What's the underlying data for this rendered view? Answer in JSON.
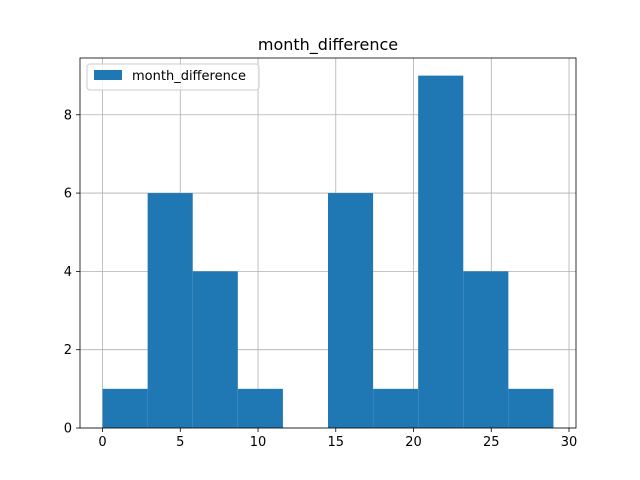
{
  "chart_data": {
    "type": "bar",
    "title": "month_difference",
    "xlabel": "",
    "ylabel": "",
    "series": [
      {
        "name": "month_difference",
        "color": "#1f77b4",
        "bins": [
          {
            "x0": 0.0,
            "x1": 2.9,
            "count": 1
          },
          {
            "x0": 2.9,
            "x1": 5.8,
            "count": 6
          },
          {
            "x0": 5.8,
            "x1": 8.7,
            "count": 4
          },
          {
            "x0": 8.7,
            "x1": 11.6,
            "count": 1
          },
          {
            "x0": 11.6,
            "x1": 14.5,
            "count": 0
          },
          {
            "x0": 14.5,
            "x1": 17.4,
            "count": 6
          },
          {
            "x0": 17.4,
            "x1": 20.3,
            "count": 1
          },
          {
            "x0": 20.3,
            "x1": 23.2,
            "count": 9
          },
          {
            "x0": 23.2,
            "x1": 26.1,
            "count": 4
          },
          {
            "x0": 26.1,
            "x1": 29.0,
            "count": 1
          }
        ]
      }
    ],
    "xlim": [
      -1.45,
      30.45
    ],
    "ylim": [
      0,
      9.45
    ],
    "xticks": [
      0,
      5,
      10,
      15,
      20,
      25,
      30
    ],
    "yticks": [
      0,
      2,
      4,
      6,
      8
    ],
    "grid": true,
    "legend_position": "top-left"
  }
}
